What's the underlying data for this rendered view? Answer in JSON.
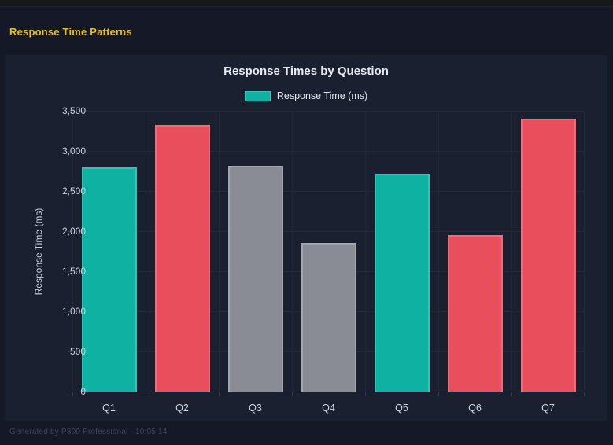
{
  "page": {
    "title": "Response Time Patterns",
    "title_color": "#e9bd17",
    "footer": "Generated by P300 Professional - 10:05:14"
  },
  "chart_data": {
    "type": "bar",
    "title": "Response Times by Question",
    "legend": [
      {
        "label": "Response Time (ms)",
        "color": "#0fb1a2",
        "border_color": "#35c7b7"
      }
    ],
    "legend_position": "top",
    "categories": [
      "Q1",
      "Q2",
      "Q3",
      "Q4",
      "Q5",
      "Q6",
      "Q7"
    ],
    "values": [
      2790,
      3320,
      2810,
      1850,
      2720,
      1950,
      3400
    ],
    "bar_colors": [
      "#0fb1a2",
      "#e94e5c",
      "#8a8c95",
      "#8a8c95",
      "#0fb1a2",
      "#e94e5c",
      "#e94e5c"
    ],
    "bar_border_colors": [
      "#2fc4b5",
      "#ef6b77",
      "#a4a6ae",
      "#a4a6ae",
      "#2fc4b5",
      "#ef6b77",
      "#ef6b77"
    ],
    "xlabel": "",
    "ylabel": "Response Time (ms)",
    "ylim": [
      0,
      3500
    ],
    "ytick_step": 500,
    "ytick_labels": [
      "0",
      "500",
      "1,000",
      "1,500",
      "2,000",
      "2,500",
      "3,000",
      "3,500"
    ],
    "grid": true
  }
}
